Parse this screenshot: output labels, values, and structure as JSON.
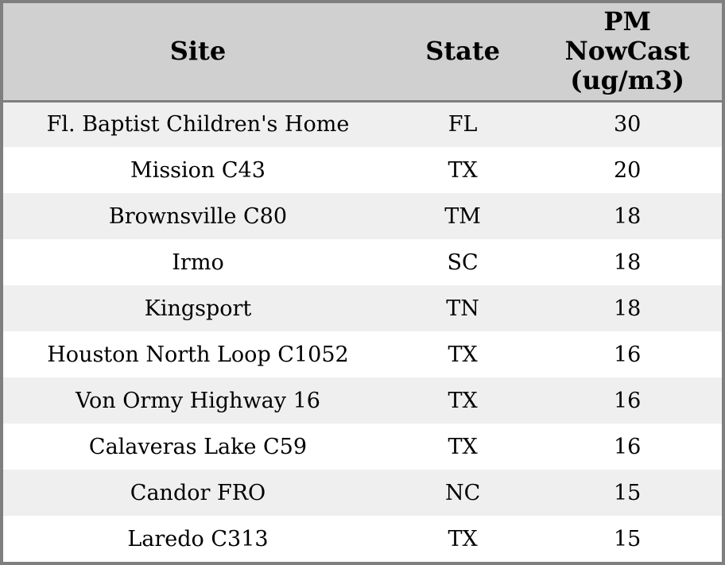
{
  "chart_data": {
    "type": "table",
    "title": "",
    "columns": [
      "Site",
      "State",
      "PM NowCast (ug/m3)"
    ],
    "rows": [
      {
        "site": "Fl. Baptist Children's Home",
        "state": "FL",
        "pm_nowcast": 30
      },
      {
        "site": "Mission C43",
        "state": "TX",
        "pm_nowcast": 20
      },
      {
        "site": "Brownsville C80",
        "state": "TM",
        "pm_nowcast": 18
      },
      {
        "site": "Irmo",
        "state": "SC",
        "pm_nowcast": 18
      },
      {
        "site": "Kingsport",
        "state": "TN",
        "pm_nowcast": 18
      },
      {
        "site": "Houston North Loop C1052",
        "state": "TX",
        "pm_nowcast": 16
      },
      {
        "site": "Von Ormy Highway 16",
        "state": "TX",
        "pm_nowcast": 16
      },
      {
        "site": "Calaveras Lake C59",
        "state": "TX",
        "pm_nowcast": 16
      },
      {
        "site": "Candor FRO",
        "state": "NC",
        "pm_nowcast": 15
      },
      {
        "site": "Laredo C313",
        "state": "TX",
        "pm_nowcast": 15
      }
    ],
    "layout_hints": {
      "striped_rows": true,
      "all_cells_centered": true
    }
  },
  "colors": {
    "frame_border": "#7f7f7f",
    "header_background": "#d0d0d0",
    "header_rule": "#7f7f7f",
    "row_alt_background": "#efefef",
    "row_background": "#ffffff",
    "text": "#000000"
  }
}
